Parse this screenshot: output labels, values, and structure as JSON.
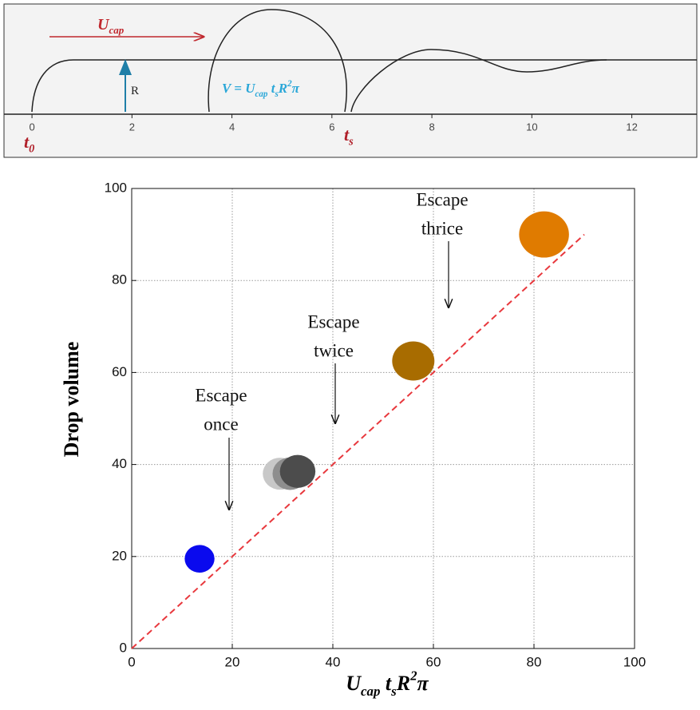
{
  "chart_data": [
    {
      "type": "schematic",
      "xlim": [
        -0.56,
        13.3
      ],
      "xticks": [
        0,
        2,
        4,
        6,
        8,
        10,
        12
      ],
      "annotations": [
        {
          "parts": [
            {
              "text": "U"
            },
            {
              "text": "cap",
              "sub": true
            }
          ],
          "color": "#c0272d"
        },
        {
          "parts": [
            {
              "text": "R"
            }
          ],
          "color": "#222222"
        },
        {
          "parts": [
            {
              "text": "V = U"
            },
            {
              "text": "cap",
              "sub": true
            },
            {
              "text": " t"
            },
            {
              "text": "s",
              "sub": true
            },
            {
              "text": "R"
            },
            {
              "text": "2",
              "sup": true
            },
            {
              "text": "π"
            }
          ],
          "color": "#2aa7d8"
        },
        {
          "parts": [
            {
              "text": "t"
            },
            {
              "text": "0",
              "sub": true
            }
          ],
          "color": "#b0202a"
        },
        {
          "parts": [
            {
              "text": "t"
            },
            {
              "text": "s",
              "sub": true
            }
          ],
          "color": "#b0202a"
        }
      ]
    },
    {
      "type": "scatter",
      "x_label": [
        {
          "text": "U"
        },
        {
          "text": "cap",
          "sub": true
        },
        {
          "text": " t"
        },
        {
          "text": "s",
          "sub": true
        },
        {
          "text": "R"
        },
        {
          "text": "2",
          "sup": true
        },
        {
          "text": "π"
        }
      ],
      "y_label": "Drop volume",
      "xlim": [
        0,
        100
      ],
      "ylim": [
        0,
        100
      ],
      "xticks": [
        0,
        20,
        40,
        60,
        80,
        100
      ],
      "yticks": [
        0,
        20,
        40,
        60,
        80,
        100
      ],
      "grid": true,
      "series": [
        {
          "x": [
            13.5,
            29.5,
            31.5,
            33,
            56,
            82
          ],
          "values": [
            19.5,
            38,
            38,
            38.5,
            62.5,
            90
          ],
          "colors": [
            "#0a0aee",
            "#c8c8c8",
            "#8e8e8e",
            "#4c4c4c",
            "#a86c00",
            "#e07b00"
          ]
        }
      ],
      "reference_line": {
        "x": [
          0,
          90
        ],
        "values": [
          0,
          90
        ],
        "color": "#e8383d",
        "dashed": true
      },
      "annotations": [
        {
          "lines": [
            "Escape",
            "once"
          ]
        },
        {
          "lines": [
            "Escape",
            "twice"
          ]
        },
        {
          "lines": [
            "Escape",
            "thrice"
          ]
        }
      ]
    }
  ]
}
